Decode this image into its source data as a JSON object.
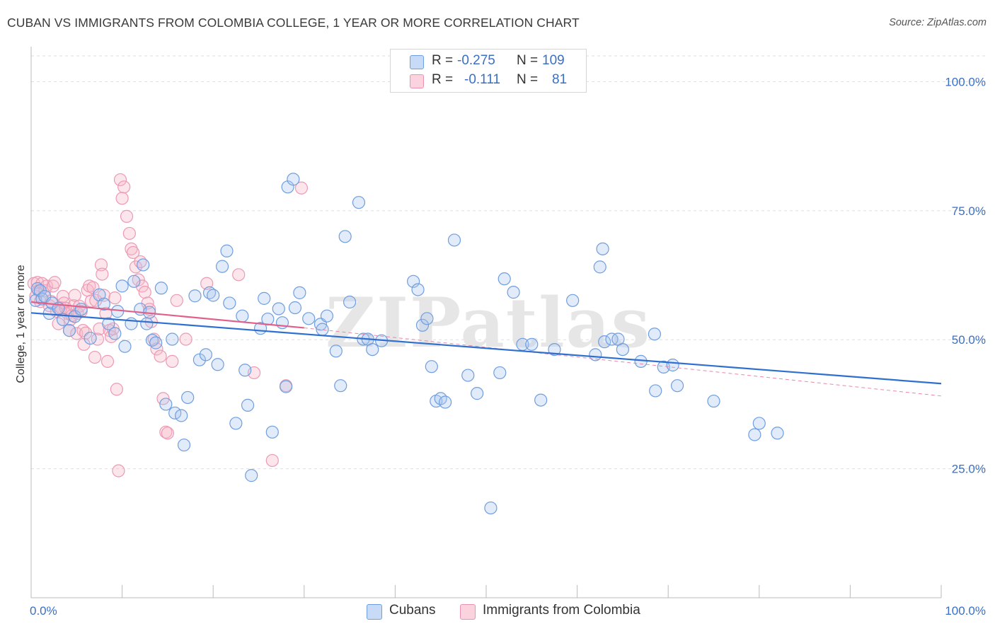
{
  "title": "CUBAN VS IMMIGRANTS FROM COLOMBIA COLLEGE, 1 YEAR OR MORE CORRELATION CHART",
  "source": "Source: ZipAtlas.com",
  "watermark": "ZIPatlas",
  "legend": {
    "rows": [
      {
        "r_label": "R =",
        "r_value": "-0.275",
        "n_label": "N =",
        "n_value": "109",
        "color": "#a9c5ee"
      },
      {
        "r_label": "R =",
        "r_value": "-0.111",
        "n_label": "N =",
        "n_value": "81",
        "color": "#f5b6c9"
      }
    ]
  },
  "bottom_legend": [
    {
      "label": "Cubans",
      "color": "#a9c5ee"
    },
    {
      "label": "Immigrants from Colombia",
      "color": "#f5b6c9"
    }
  ],
  "chart_data": {
    "type": "scatter",
    "title": "CUBAN VS IMMIGRANTS FROM COLOMBIA COLLEGE, 1 YEAR OR MORE CORRELATION CHART",
    "ylabel": "College, 1 year or more",
    "xlabel": "",
    "xlim": [
      0,
      100
    ],
    "ylim": [
      0,
      105
    ],
    "x_tick_labels": [
      "0.0%",
      "100.0%"
    ],
    "y_ticks": [
      25,
      50,
      75,
      100
    ],
    "y_tick_labels": [
      "25.0%",
      "50.0%",
      "75.0%",
      "100.0%"
    ],
    "grid": true,
    "colors": {
      "cubans": "#5b8fd9",
      "colombia": "#e889a8",
      "cubans_line": "#2f6fcf",
      "colombia_line": "#e0608a"
    },
    "series": [
      {
        "name": "Cubans",
        "r": -0.275,
        "n": 109,
        "trend": {
          "x": [
            0,
            100
          ],
          "y": [
            55.2,
            41.5
          ]
        },
        "points": [
          [
            0.5,
            57.6
          ],
          [
            0.7,
            59.9
          ],
          [
            1,
            59.5
          ],
          [
            1.2,
            57.9
          ],
          [
            1.5,
            58.4
          ],
          [
            2,
            55.1
          ],
          [
            2.3,
            57.1
          ],
          [
            3,
            56.1
          ],
          [
            3.5,
            53.9
          ],
          [
            4.2,
            51.8
          ],
          [
            4.8,
            54.5
          ],
          [
            5.5,
            55.9
          ],
          [
            6.5,
            50.3
          ],
          [
            7.5,
            58.7
          ],
          [
            8,
            56.9
          ],
          [
            8.5,
            53.1
          ],
          [
            9.2,
            51.2
          ],
          [
            9.5,
            55.5
          ],
          [
            10,
            60.4
          ],
          [
            11,
            53.1
          ],
          [
            11.3,
            61.3
          ],
          [
            10.3,
            48.7
          ],
          [
            12,
            55.9
          ],
          [
            12.3,
            64.5
          ],
          [
            12.7,
            53.1
          ],
          [
            13,
            55.3
          ],
          [
            13.3,
            49.9
          ],
          [
            13.7,
            49.4
          ],
          [
            14.3,
            60
          ],
          [
            14.8,
            37.5
          ],
          [
            15.5,
            50.1
          ],
          [
            15.8,
            35.8
          ],
          [
            16.5,
            35.3
          ],
          [
            16.8,
            29.6
          ],
          [
            17.2,
            38.8
          ],
          [
            18,
            58.5
          ],
          [
            18.5,
            46.1
          ],
          [
            19.2,
            47.1
          ],
          [
            19.6,
            59.1
          ],
          [
            20,
            58.6
          ],
          [
            20.5,
            45.2
          ],
          [
            21,
            64.2
          ],
          [
            21.5,
            67.2
          ],
          [
            21.8,
            57.1
          ],
          [
            22.5,
            33.8
          ],
          [
            23.2,
            54.6
          ],
          [
            23.5,
            44.1
          ],
          [
            23.8,
            37.3
          ],
          [
            24.2,
            23.7
          ],
          [
            25.2,
            52.2
          ],
          [
            25.6,
            58
          ],
          [
            26,
            54
          ],
          [
            26.5,
            32.1
          ],
          [
            27.2,
            56
          ],
          [
            27.6,
            53.3
          ],
          [
            28,
            40.9
          ],
          [
            28.2,
            79.6
          ],
          [
            28.8,
            81.1
          ],
          [
            29,
            56.2
          ],
          [
            29.5,
            59.1
          ],
          [
            30.5,
            54.1
          ],
          [
            31.8,
            53
          ],
          [
            32,
            52
          ],
          [
            32.5,
            54.6
          ],
          [
            33.5,
            47.8
          ],
          [
            34,
            41.1
          ],
          [
            34.5,
            70
          ],
          [
            35,
            57.3
          ],
          [
            36,
            76.6
          ],
          [
            36.5,
            50.1
          ],
          [
            37,
            50.1
          ],
          [
            37.5,
            48.1
          ],
          [
            38.5,
            49.8
          ],
          [
            42,
            61.3
          ],
          [
            42.5,
            59.7
          ],
          [
            43,
            52.8
          ],
          [
            43.5,
            54.1
          ],
          [
            44,
            44.8
          ],
          [
            44.5,
            38.1
          ],
          [
            45,
            38.6
          ],
          [
            45.5,
            37.9
          ],
          [
            46.5,
            69.3
          ],
          [
            48,
            43.1
          ],
          [
            49,
            39.6
          ],
          [
            50.5,
            17.4
          ],
          [
            51.5,
            43.6
          ],
          [
            52,
            61.8
          ],
          [
            53,
            59.2
          ],
          [
            54,
            49.1
          ],
          [
            55,
            49.1
          ],
          [
            56,
            38.3
          ],
          [
            57.5,
            48.1
          ],
          [
            59.5,
            57.6
          ],
          [
            62,
            47.1
          ],
          [
            62.5,
            64.1
          ],
          [
            62.8,
            67.6
          ],
          [
            63,
            49.6
          ],
          [
            63.8,
            50.1
          ],
          [
            64.5,
            50.1
          ],
          [
            65,
            48.1
          ],
          [
            67,
            45.8
          ],
          [
            68.5,
            51.1
          ],
          [
            68.6,
            40.1
          ],
          [
            69.5,
            44.7
          ],
          [
            70.5,
            45.1
          ],
          [
            71,
            41.1
          ],
          [
            75,
            38.1
          ],
          [
            79.5,
            31.6
          ],
          [
            80,
            33.8
          ],
          [
            82,
            31.9
          ]
        ]
      },
      {
        "name": "Immigrants from Colombia",
        "r": -0.111,
        "n": 81,
        "trend": {
          "x": [
            0,
            30
          ],
          "y": [
            57.3,
            52.3
          ]
        },
        "trend_dashed": {
          "x": [
            30,
            100
          ],
          "y": [
            52.3,
            39.1
          ]
        },
        "points": [
          [
            0.3,
            60.9
          ],
          [
            0.5,
            58.4
          ],
          [
            0.7,
            61.1
          ],
          [
            0.8,
            59.5
          ],
          [
            1,
            57.4
          ],
          [
            1.2,
            60.9
          ],
          [
            1.5,
            59.5
          ],
          [
            1.7,
            60.4
          ],
          [
            2,
            56.6
          ],
          [
            2.2,
            57.4
          ],
          [
            2.4,
            60.4
          ],
          [
            2.6,
            61.1
          ],
          [
            2.8,
            55.5
          ],
          [
            3,
            53.1
          ],
          [
            3.2,
            55.7
          ],
          [
            3.3,
            56.2
          ],
          [
            3.5,
            58.4
          ],
          [
            3.6,
            57.1
          ],
          [
            3.8,
            56.1
          ],
          [
            4,
            55.1
          ],
          [
            4.2,
            51.8
          ],
          [
            4.3,
            53.9
          ],
          [
            4.5,
            54.7
          ],
          [
            4.7,
            56.6
          ],
          [
            4.8,
            58.6
          ],
          [
            5,
            51.2
          ],
          [
            5.1,
            55.1
          ],
          [
            5.3,
            56.5
          ],
          [
            5.5,
            55.5
          ],
          [
            5.7,
            51.8
          ],
          [
            5.8,
            49.1
          ],
          [
            6,
            51.3
          ],
          [
            6.2,
            59.6
          ],
          [
            6.4,
            60.4
          ],
          [
            6.6,
            57.5
          ],
          [
            6.8,
            60.1
          ],
          [
            7,
            46.6
          ],
          [
            7.1,
            57.6
          ],
          [
            7.3,
            50.1
          ],
          [
            7.5,
            52.1
          ],
          [
            7.7,
            64.5
          ],
          [
            7.8,
            62.7
          ],
          [
            8,
            58.6
          ],
          [
            8.2,
            55.1
          ],
          [
            8.4,
            45.8
          ],
          [
            8.6,
            51.8
          ],
          [
            8.8,
            50.6
          ],
          [
            9,
            52.1
          ],
          [
            9.2,
            58.1
          ],
          [
            9.4,
            40.4
          ],
          [
            9.6,
            24.6
          ],
          [
            9.8,
            81
          ],
          [
            10,
            77.4
          ],
          [
            10.2,
            79.6
          ],
          [
            10.5,
            73.9
          ],
          [
            10.8,
            70.6
          ],
          [
            11,
            67.6
          ],
          [
            11.2,
            66.9
          ],
          [
            11.5,
            64.1
          ],
          [
            11.8,
            61.6
          ],
          [
            12,
            65.1
          ],
          [
            12.2,
            60.4
          ],
          [
            12.5,
            59.2
          ],
          [
            12.8,
            57.1
          ],
          [
            13,
            55.9
          ],
          [
            13.2,
            53.5
          ],
          [
            13.5,
            50.1
          ],
          [
            13.8,
            48.2
          ],
          [
            14.2,
            46.8
          ],
          [
            14.5,
            38.6
          ],
          [
            14.8,
            32.1
          ],
          [
            15,
            31.9
          ],
          [
            15.5,
            45.8
          ],
          [
            16,
            57.6
          ],
          [
            17,
            50.1
          ],
          [
            19.3,
            60.9
          ],
          [
            22.8,
            62.6
          ],
          [
            24.5,
            43.6
          ],
          [
            26.5,
            26.6
          ],
          [
            28,
            41.1
          ],
          [
            29.7,
            79.4
          ]
        ]
      }
    ]
  }
}
